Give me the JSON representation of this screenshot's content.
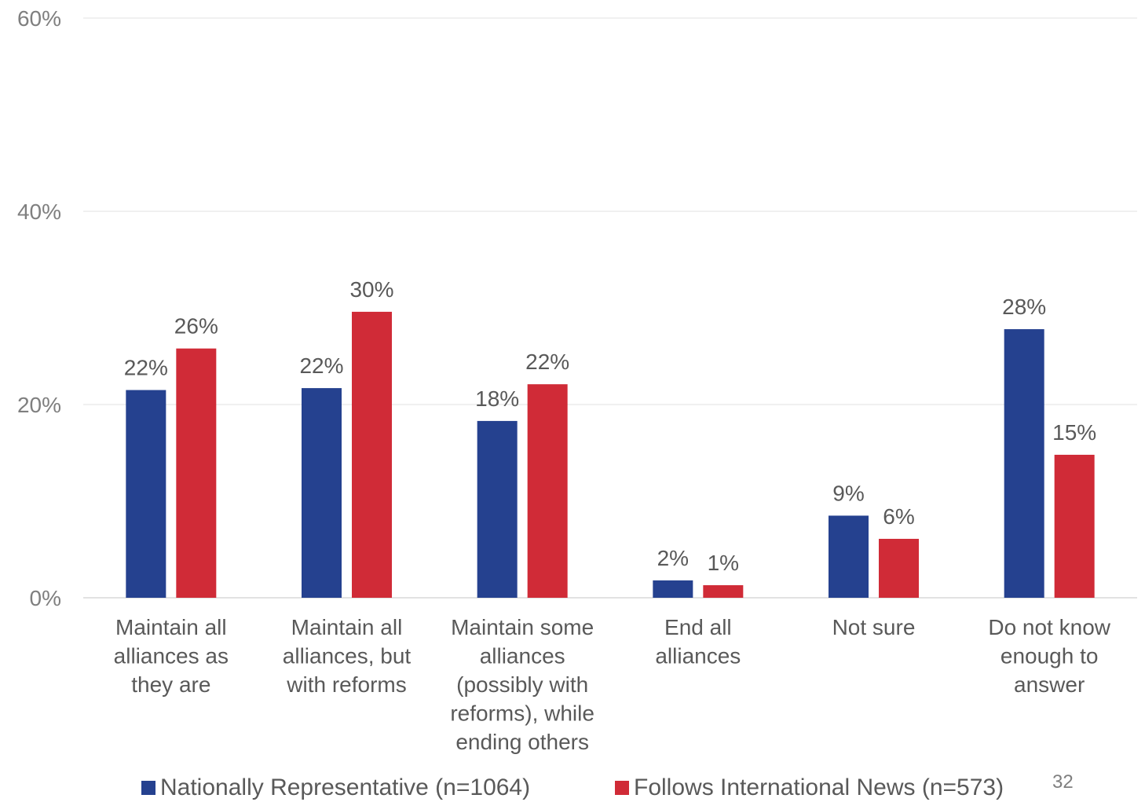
{
  "chart_data": {
    "type": "bar",
    "categories": [
      [
        "Maintain all",
        "alliances as",
        "they are"
      ],
      [
        "Maintain all",
        "alliances, but",
        "with reforms"
      ],
      [
        "Maintain some",
        "alliances",
        "(possibly with",
        "reforms), while",
        "ending others"
      ],
      [
        "End all",
        "alliances"
      ],
      [
        "Not sure"
      ],
      [
        "Do not know",
        "enough to",
        "answer"
      ]
    ],
    "series": [
      {
        "name": "Nationally Representative (n=1064)",
        "color": "#25418f",
        "values": [
          21.5,
          21.7,
          18.3,
          1.8,
          8.5,
          27.8
        ],
        "labels": [
          "22%",
          "22%",
          "18%",
          "2%",
          "9%",
          "28%"
        ]
      },
      {
        "name": "Follows International News (n=573)",
        "color": "#d02b37",
        "values": [
          25.8,
          29.6,
          22.1,
          1.3,
          6.1,
          14.8
        ],
        "labels": [
          "26%",
          "30%",
          "22%",
          "1%",
          "6%",
          "15%"
        ]
      }
    ],
    "ylim": [
      0,
      60
    ],
    "yticks": [
      0,
      20,
      40,
      60
    ],
    "ytick_labels": [
      "0%",
      "20%",
      "40%",
      "60%"
    ],
    "grid": true,
    "legend_position": "bottom"
  },
  "page_number": "32"
}
